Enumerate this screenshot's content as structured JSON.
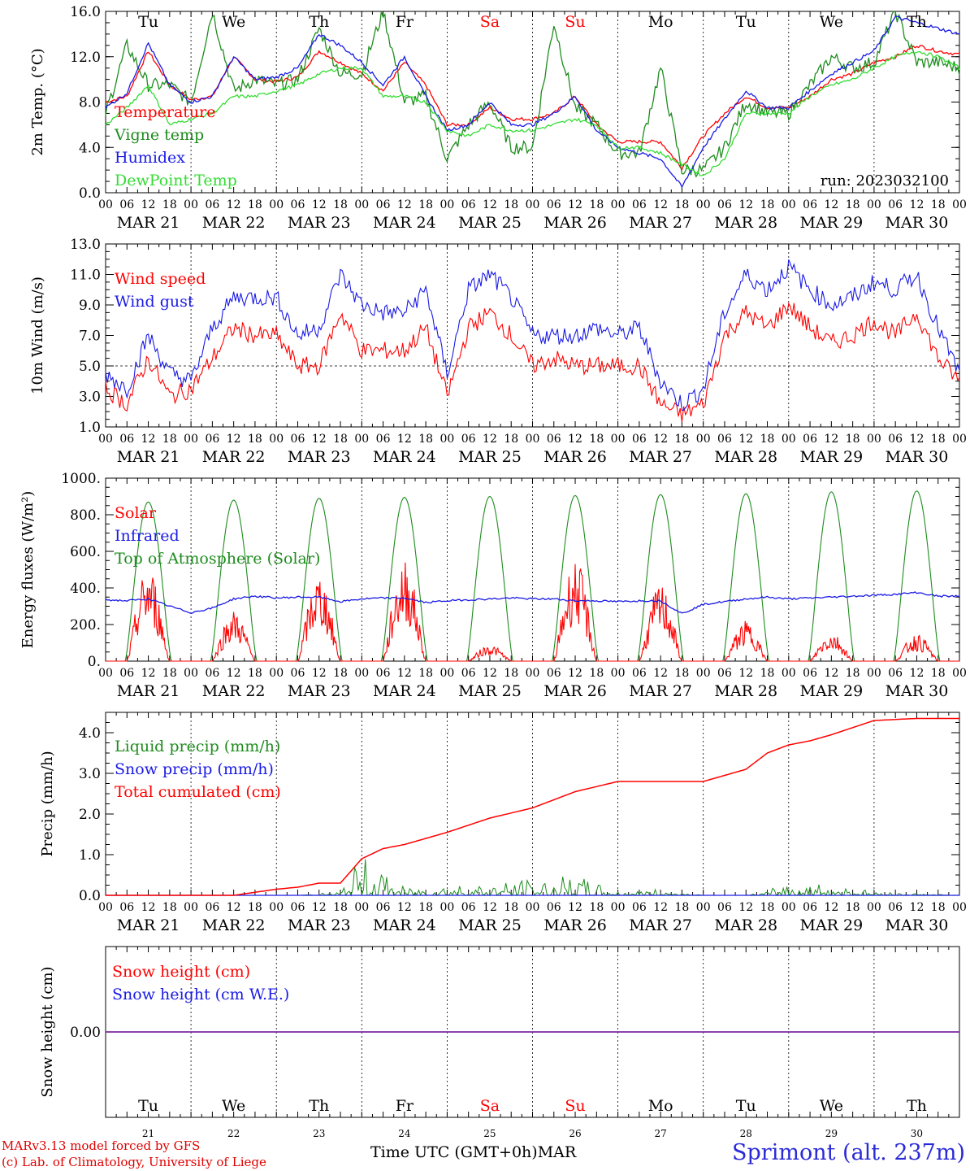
{
  "colors": {
    "red": "#ff0000",
    "green": "#1e8c1e",
    "blue": "#1a1ae6",
    "light_green": "#33dd33",
    "purple": "#7a2aa0"
  },
  "days": [
    "Tu",
    "We",
    "Th",
    "Fr",
    "Sa",
    "Su",
    "Mo",
    "Tu",
    "We",
    "Th"
  ],
  "weekend_day_indices": [
    4,
    5
  ],
  "date_labels": [
    "MAR 21",
    "MAR 22",
    "MAR 23",
    "MAR 24",
    "MAR 25",
    "MAR 26",
    "MAR 27",
    "MAR 28",
    "MAR 29",
    "MAR 30"
  ],
  "day_numbers": [
    "21",
    "22",
    "23",
    "24",
    "25",
    "26",
    "27",
    "28",
    "29",
    "30"
  ],
  "hour_ticks": [
    "00",
    "06",
    "12",
    "18"
  ],
  "footer": {
    "model": "MARv3.13 model forced by GFS",
    "copyright": "(c) Lab. of Climatology, University of Liege",
    "time_label": "Time UTC (GMT+0h)",
    "month": "MAR",
    "station": "Sprimont (alt. 237m)"
  },
  "chart_data": [
    {
      "type": "line",
      "ylabel": "2m Temp. (°C)",
      "ylim": [
        0,
        16
      ],
      "yticks": [
        "0.0",
        "4.0",
        "8.0",
        "12.0",
        "16.0"
      ],
      "annotation": "run: 2023032100",
      "show_day_names": true,
      "x": [
        0,
        6,
        12,
        18,
        24,
        30,
        36,
        42,
        48,
        54,
        60,
        66,
        72,
        78,
        84,
        90,
        96,
        102,
        108,
        114,
        120,
        126,
        132,
        138,
        144,
        150,
        156,
        162,
        168,
        174,
        180,
        186,
        192,
        198,
        204,
        210,
        216,
        222,
        228,
        234,
        240
      ],
      "series": [
        {
          "name": "Temperature",
          "color": "#ff0000",
          "values": [
            8.0,
            8.5,
            12.5,
            9.5,
            8.2,
            8.5,
            12.0,
            10.0,
            9.8,
            10.2,
            12.5,
            11.5,
            10.5,
            9.0,
            11.5,
            9.5,
            6.0,
            6.0,
            7.5,
            6.5,
            6.5,
            7.0,
            8.5,
            6.0,
            4.5,
            4.5,
            4.5,
            2.2,
            5.0,
            7.0,
            8.5,
            7.5,
            7.5,
            8.5,
            10.0,
            10.5,
            11.5,
            12.0,
            13.0,
            12.5,
            12.2
          ]
        },
        {
          "name": "Vigne temp",
          "color": "#1e8c1e",
          "values": [
            7.0,
            13.0,
            9.5,
            9.5,
            8.0,
            16.0,
            9.0,
            10.0,
            9.5,
            10.0,
            14.5,
            10.5,
            10.5,
            16.0,
            8.0,
            8.5,
            3.0,
            6.0,
            8.0,
            4.0,
            4.0,
            15.0,
            7.5,
            6.0,
            3.5,
            3.5,
            11.0,
            2.0,
            2.0,
            4.0,
            8.0,
            7.0,
            7.0,
            9.5,
            12.0,
            11.0,
            11.5,
            16.0,
            11.5,
            11.5,
            11.0
          ]
        },
        {
          "name": "Humidex",
          "color": "#1a1ae6",
          "values": [
            7.5,
            8.8,
            13.2,
            9.5,
            8.0,
            8.5,
            12.0,
            10.0,
            10.2,
            11.0,
            14.0,
            13.0,
            11.5,
            9.5,
            12.0,
            8.5,
            5.5,
            6.0,
            8.0,
            6.0,
            6.0,
            7.0,
            8.5,
            5.5,
            4.0,
            3.5,
            3.0,
            0.5,
            4.0,
            6.5,
            9.0,
            7.5,
            7.5,
            9.0,
            10.5,
            11.5,
            12.5,
            15.5,
            15.0,
            14.5,
            14.0
          ]
        },
        {
          "name": "DewPoint Temp",
          "color": "#33dd33",
          "values": [
            6.0,
            7.5,
            9.5,
            6.0,
            6.5,
            7.0,
            8.5,
            8.5,
            9.0,
            9.5,
            10.5,
            11.0,
            11.0,
            8.5,
            8.5,
            8.0,
            5.5,
            5.0,
            6.0,
            5.5,
            5.5,
            6.0,
            6.5,
            6.0,
            4.0,
            4.0,
            3.5,
            2.5,
            1.5,
            3.0,
            7.0,
            7.0,
            7.0,
            8.5,
            9.5,
            10.0,
            11.0,
            12.0,
            12.5,
            12.0,
            11.0
          ]
        }
      ]
    },
    {
      "type": "line",
      "ylabel": "10m Wind (m/s)",
      "ylim": [
        1,
        13
      ],
      "yticks": [
        "1.0",
        "3.0",
        "5.0",
        "7.0",
        "9.0",
        "11.0",
        "13.0"
      ],
      "ref_line": 5,
      "x": [
        0,
        6,
        12,
        18,
        24,
        30,
        36,
        42,
        48,
        54,
        60,
        66,
        72,
        78,
        84,
        90,
        96,
        102,
        108,
        114,
        120,
        126,
        132,
        138,
        144,
        150,
        156,
        162,
        168,
        174,
        180,
        186,
        192,
        198,
        204,
        210,
        216,
        222,
        228,
        234,
        240
      ],
      "series": [
        {
          "name": "Wind speed",
          "color": "#ff0000",
          "values": [
            3.5,
            2.5,
            5.5,
            3.0,
            3.5,
            5.5,
            7.5,
            7.0,
            7.0,
            5.0,
            5.0,
            8.5,
            6.0,
            6.0,
            6.0,
            7.5,
            3.0,
            7.5,
            8.5,
            7.0,
            5.0,
            5.5,
            5.0,
            5.0,
            5.0,
            5.0,
            2.5,
            1.8,
            2.5,
            7.0,
            8.5,
            7.5,
            9.0,
            7.5,
            6.5,
            7.0,
            8.0,
            7.0,
            8.5,
            5.5,
            4.0
          ]
        },
        {
          "name": "Wind gust",
          "color": "#1a1ae6",
          "values": [
            4.5,
            3.5,
            7.0,
            4.5,
            4.0,
            7.5,
            9.5,
            9.5,
            9.5,
            7.0,
            7.5,
            11.0,
            9.0,
            8.5,
            8.5,
            10.0,
            4.5,
            10.0,
            11.0,
            9.5,
            7.0,
            7.0,
            7.0,
            7.5,
            7.0,
            7.5,
            4.0,
            2.5,
            3.5,
            8.5,
            11.0,
            10.0,
            11.5,
            10.0,
            9.0,
            9.5,
            10.5,
            10.0,
            11.0,
            7.5,
            4.5
          ]
        }
      ]
    },
    {
      "type": "line",
      "ylabel": "Energy fluxes (W/m²)",
      "ylim": [
        0,
        1000
      ],
      "yticks": [
        "0.",
        "200.",
        "400.",
        "600.",
        "800.",
        "1000."
      ],
      "series": [
        {
          "name": "Solar",
          "color": "#ff0000",
          "daily_peak": [
            520,
            280,
            480,
            560,
            90,
            560,
            420,
            220,
            160,
            150
          ],
          "daily_max_height": [
            870,
            880,
            890,
            895,
            900,
            905,
            910,
            915,
            925,
            930
          ]
        },
        {
          "name": "Infrared",
          "color": "#1a1ae6",
          "x": [
            0,
            6,
            12,
            18,
            24,
            30,
            36,
            42,
            48,
            54,
            60,
            66,
            72,
            78,
            84,
            90,
            96,
            102,
            108,
            114,
            120,
            126,
            132,
            138,
            144,
            150,
            156,
            162,
            168,
            174,
            180,
            186,
            192,
            198,
            204,
            210,
            216,
            222,
            228,
            234,
            240
          ],
          "values": [
            335,
            330,
            340,
            300,
            265,
            290,
            340,
            355,
            345,
            350,
            350,
            325,
            340,
            345,
            345,
            320,
            330,
            335,
            340,
            345,
            340,
            340,
            330,
            330,
            325,
            330,
            330,
            260,
            310,
            325,
            340,
            350,
            340,
            345,
            350,
            355,
            360,
            365,
            375,
            355,
            355
          ]
        },
        {
          "name": "Top of Atmosphere (Solar)",
          "color": "#1e8c1e",
          "daily_peak": [
            870,
            880,
            890,
            895,
            900,
            905,
            910,
            915,
            925,
            930
          ]
        }
      ]
    },
    {
      "type": "line",
      "ylabel": "Precip (mm/h)",
      "ylim": [
        0,
        4.5
      ],
      "yticks": [
        "0.0",
        "1.0",
        "2.0",
        "3.0",
        "4.0"
      ],
      "x": [
        0,
        12,
        24,
        36,
        48,
        54,
        60,
        66,
        72,
        78,
        84,
        96,
        108,
        120,
        132,
        144,
        156,
        168,
        180,
        186,
        192,
        198,
        204,
        216,
        228,
        240
      ],
      "series": [
        {
          "name": "Liquid precip (mm/h)",
          "color": "#1e8c1e",
          "values": [
            0,
            0,
            0,
            0,
            0,
            0,
            0.05,
            0.1,
            1.0,
            0.6,
            0.2,
            0.3,
            0.3,
            0.4,
            0.5,
            0.1,
            0.15,
            0,
            0,
            0.1,
            0.4,
            0.3,
            0.3,
            0.1,
            0.05,
            0
          ]
        },
        {
          "name": "Snow precip (mm/h)",
          "color": "#1a1ae6",
          "values": [
            0,
            0,
            0,
            0,
            0,
            0,
            0,
            0,
            0,
            0,
            0,
            0,
            0,
            0,
            0,
            0,
            0,
            0,
            0,
            0,
            0,
            0,
            0,
            0,
            0,
            0
          ]
        },
        {
          "name": "Total cumulated (cm)",
          "color": "#ff0000",
          "values": [
            0,
            0,
            0,
            0,
            0.15,
            0.2,
            0.3,
            0.3,
            0.9,
            1.15,
            1.25,
            1.55,
            1.9,
            2.15,
            2.55,
            2.8,
            2.8,
            2.8,
            3.1,
            3.5,
            3.7,
            3.8,
            3.95,
            4.3,
            4.35,
            4.35
          ]
        }
      ]
    },
    {
      "type": "line",
      "ylabel": "Snow height (cm)",
      "yticks": [
        "0.00"
      ],
      "show_day_names_bottom": true,
      "series": [
        {
          "name": "Snow height (cm)",
          "color": "#ff0000",
          "values": [
            0,
            0
          ]
        },
        {
          "name": "Snow height (cm W.E.)",
          "color": "#1a1ae6",
          "values": [
            0,
            0
          ]
        }
      ]
    }
  ]
}
